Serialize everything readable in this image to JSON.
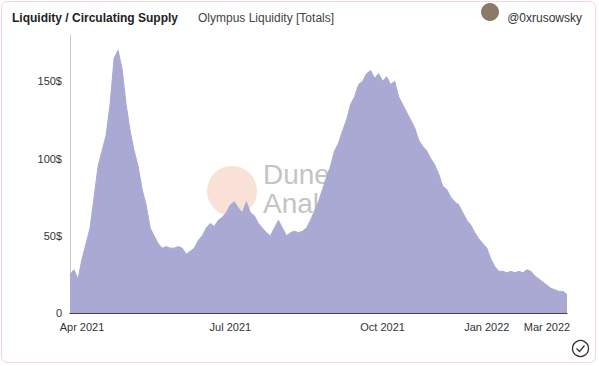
{
  "chart_data": {
    "type": "area",
    "title": "Liquidity / Circulating Supply",
    "subtitle": "Olympus Liquidity [Totals]",
    "credit": "@0xrusowsky",
    "annotations": [
      "Dune",
      "Analytics"
    ],
    "categories": [
      null,
      null,
      null,
      "Apr 2021",
      null,
      null,
      null,
      null,
      null,
      null,
      null,
      null,
      null,
      null,
      null,
      null,
      null,
      null,
      null,
      null,
      null,
      null,
      null,
      null,
      null,
      null,
      null,
      null,
      null,
      null,
      null,
      null,
      null,
      null,
      null,
      null,
      null,
      null,
      null,
      null,
      "Jul 2021",
      null,
      null,
      null,
      null,
      null,
      null,
      null,
      null,
      null,
      null,
      null,
      null,
      null,
      null,
      null,
      null,
      null,
      null,
      null,
      null,
      null,
      null,
      null,
      null,
      null,
      null,
      null,
      null,
      null,
      null,
      null,
      null,
      null,
      null,
      null,
      null,
      null,
      "Oct 2021",
      null,
      null,
      null,
      null,
      null,
      null,
      null,
      null,
      null,
      null,
      null,
      null,
      null,
      null,
      null,
      null,
      null,
      null,
      null,
      null,
      null,
      null,
      null,
      null,
      null,
      "Jan 2022",
      null,
      null,
      null,
      null,
      null,
      null,
      null,
      null,
      null,
      null,
      null,
      null,
      null,
      null,
      "Mar 2022",
      null,
      null,
      null,
      null,
      null
    ],
    "values": [
      25,
      28,
      22,
      35,
      45,
      55,
      75,
      95,
      105,
      115,
      135,
      165,
      170,
      158,
      135,
      118,
      105,
      95,
      80,
      70,
      55,
      50,
      45,
      42,
      43,
      42,
      42,
      43,
      42,
      38,
      40,
      42,
      47,
      50,
      55,
      58,
      56,
      60,
      62,
      65,
      70,
      72,
      68,
      65,
      72,
      65,
      63,
      58,
      55,
      52,
      50,
      55,
      60,
      55,
      50,
      52,
      53,
      52,
      53,
      55,
      60,
      66,
      72,
      80,
      88,
      95,
      105,
      110,
      118,
      125,
      135,
      140,
      148,
      150,
      155,
      157,
      152,
      155,
      150,
      153,
      148,
      150,
      140,
      135,
      130,
      125,
      120,
      112,
      108,
      105,
      100,
      96,
      90,
      82,
      80,
      75,
      72,
      70,
      65,
      60,
      57,
      52,
      48,
      45,
      42,
      35,
      30,
      27,
      27,
      26,
      27,
      26,
      27,
      26,
      28,
      27,
      24,
      22,
      20,
      18,
      16,
      15,
      14,
      14,
      12
    ],
    "color": "#a9a9d4",
    "ylim": [
      0,
      180
    ],
    "yticks": [
      0,
      {
        "value": 50,
        "label": "50$"
      },
      {
        "value": 100,
        "label": "100$"
      },
      {
        "value": 150,
        "label": "150$"
      }
    ],
    "grid": false
  }
}
